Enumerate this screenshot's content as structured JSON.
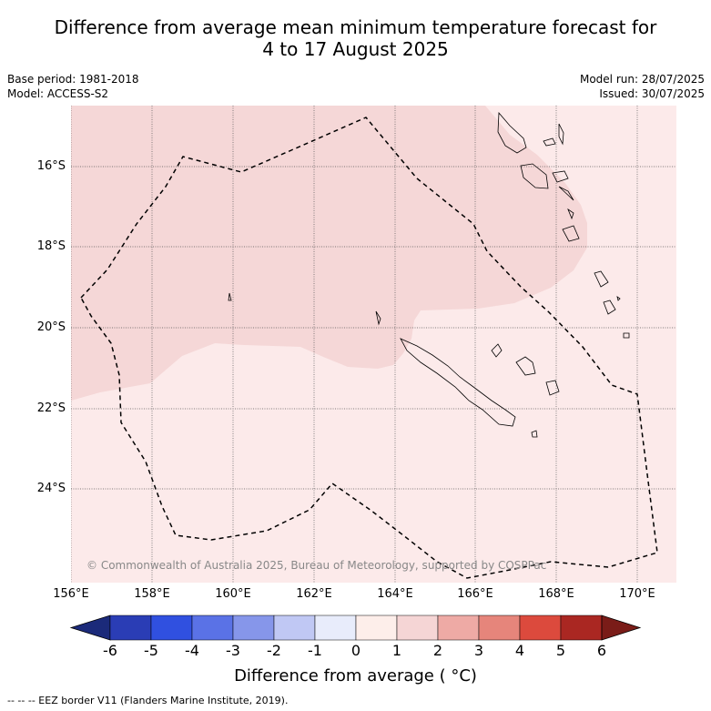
{
  "title_line1": "Difference from average mean minimum temperature forecast for",
  "title_line2": "4 to 17 August 2025",
  "base_period": "Base period: 1981-2018",
  "model": "Model: ACCESS-S2",
  "model_run": "Model run: 28/07/2025",
  "issued": "Issued: 30/07/2025",
  "copyright": "© Commonwealth of Australia 2025, Bureau of Meteorology, supported by COSPPac",
  "lat_labels": [
    "16°S",
    "18°S",
    "20°S",
    "22°S",
    "24°S"
  ],
  "lon_labels": [
    "156°E",
    "158°E",
    "160°E",
    "162°E",
    "164°E",
    "166°E",
    "168°E",
    "170°E"
  ],
  "colorbar": {
    "ticks": [
      "-6",
      "-5",
      "-4",
      "-3",
      "-2",
      "-1",
      "0",
      "1",
      "2",
      "3",
      "4",
      "5",
      "6"
    ],
    "colors": [
      "#1b2a7a",
      "#2a3db5",
      "#3050e0",
      "#5a72e6",
      "#8696ea",
      "#c0c8f4",
      "#e8ecfb",
      "#fdeeea",
      "#f5d5d5",
      "#eeaaa5",
      "#e6857b",
      "#dc4a3d",
      "#aa2722",
      "#7a1c18"
    ],
    "title": "Difference from average ( °C)"
  },
  "footer": "--  --  -- EEZ border V11 (Flanders Marine Institute, 2019).",
  "map_colors": {
    "light": "#fceaea",
    "medium": "#f5d7d7"
  }
}
